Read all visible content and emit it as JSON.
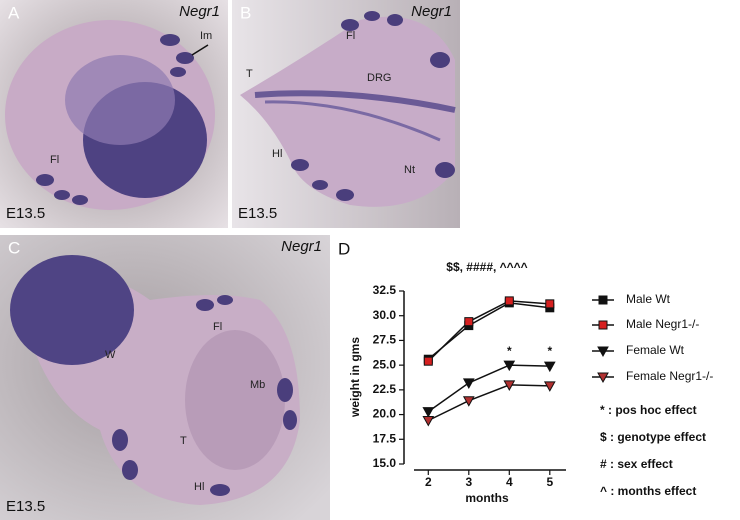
{
  "panels": [
    {
      "letter": "A",
      "gene": "Negr1",
      "stage": "E13.5",
      "labels": [
        "Im",
        "Fl"
      ]
    },
    {
      "letter": "B",
      "gene": "Negr1",
      "stage": "E13.5",
      "labels": [
        "Fl",
        "T",
        "DRG",
        "Hl",
        "Nt"
      ]
    },
    {
      "letter": "C",
      "gene": "Negr1",
      "stage": "E13.5",
      "labels": [
        "Fl",
        "W",
        "Mb",
        "T",
        "Hl"
      ]
    }
  ],
  "chart_data": {
    "type": "line",
    "letter": "D",
    "annotation": "$$, ####, ^^^^",
    "xlabel": "months",
    "ylabel": "weight in gms",
    "x": [
      2,
      3,
      4,
      5
    ],
    "xlim": [
      1.4,
      5.4
    ],
    "xticks": [
      2,
      3,
      4,
      5
    ],
    "ylim": [
      15,
      32.5
    ],
    "yticks": [
      {
        "value": 15,
        "label": "15.0"
      },
      {
        "value": 17.5,
        "label": "17.5"
      },
      {
        "value": 20,
        "label": "20.0"
      },
      {
        "value": 22.5,
        "label": "22.5"
      },
      {
        "value": 25,
        "label": "25.0"
      },
      {
        "value": 27.5,
        "label": "27.5"
      },
      {
        "value": 30,
        "label": "30.0"
      },
      {
        "value": 32.5,
        "label": "32.5"
      }
    ],
    "series": [
      {
        "name": "Male Wt",
        "color": "#111111",
        "marker": "square",
        "values": [
          25.6,
          29.0,
          31.3,
          30.8
        ]
      },
      {
        "name": "Male Negr1-/-",
        "color": "#d62020",
        "marker": "square",
        "values": [
          25.4,
          29.4,
          31.5,
          31.2
        ]
      },
      {
        "name": "Female Wt",
        "color": "#111111",
        "marker": "triangle",
        "values": [
          20.3,
          23.2,
          25.0,
          24.9
        ]
      },
      {
        "name": "Female Negr1-/-",
        "color": "#b03030",
        "marker": "triangle",
        "values": [
          19.4,
          21.4,
          23.0,
          22.9
        ]
      }
    ],
    "point_annotations": [
      {
        "x": 4,
        "text": "*"
      },
      {
        "x": 5,
        "text": "*"
      }
    ],
    "notes": [
      "* : pos hoc effect",
      "$ : genotype effect",
      "# : sex effect",
      "^ : months effect"
    ]
  }
}
